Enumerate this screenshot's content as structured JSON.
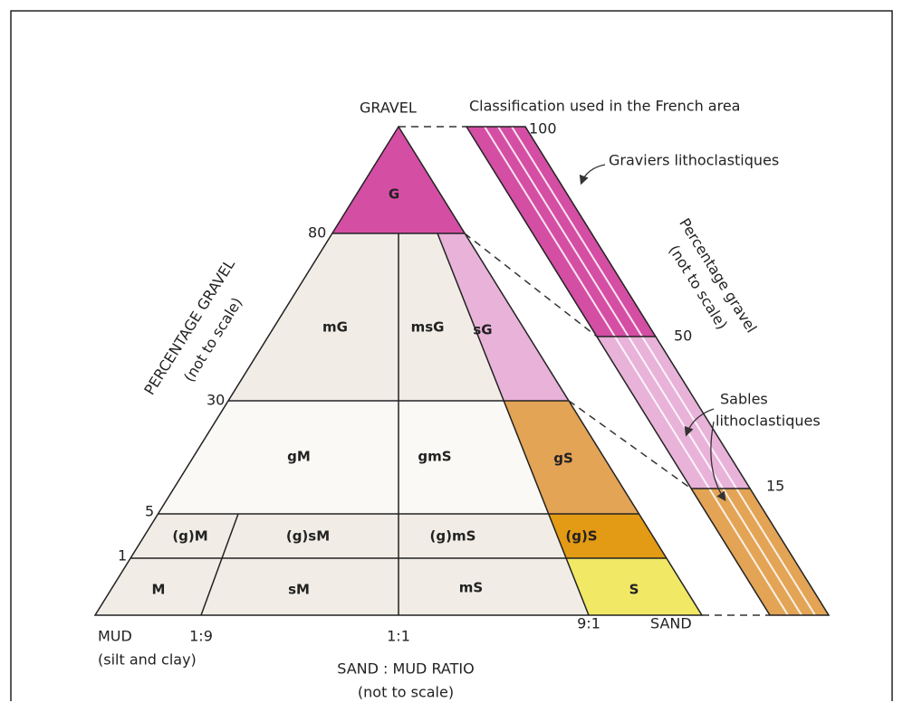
{
  "apex_label": "GRAVEL",
  "title": "Classification used in the French area",
  "left_axis": {
    "label": "PERCENTAGE GRAVEL",
    "note": "(not to scale)",
    "ticks": [
      "80",
      "30",
      "5",
      "1"
    ]
  },
  "regions": [
    "G",
    "mG",
    "msG",
    "sG",
    "gM",
    "gmS",
    "gS",
    "(g)M",
    "(g)sM",
    "(g)mS",
    "(g)S",
    "M",
    "sM",
    "mS",
    "S"
  ],
  "base": {
    "left_label": "MUD",
    "left_note": "(silt and clay)",
    "ratios": [
      "1:9",
      "1:1",
      "9:1"
    ],
    "right_label": "SAND",
    "axis_label": "SAND : MUD RATIO",
    "axis_note": "(not to scale)"
  },
  "strip": {
    "axis_label": "Percentage gravel",
    "axis_note": "(not to scale)",
    "ticks": [
      "100",
      "50",
      "15"
    ],
    "gravel_class": "Graviers lithoclastiques",
    "sand_class_line1": "Sables",
    "sand_class_line2": "lithoclastiques"
  }
}
